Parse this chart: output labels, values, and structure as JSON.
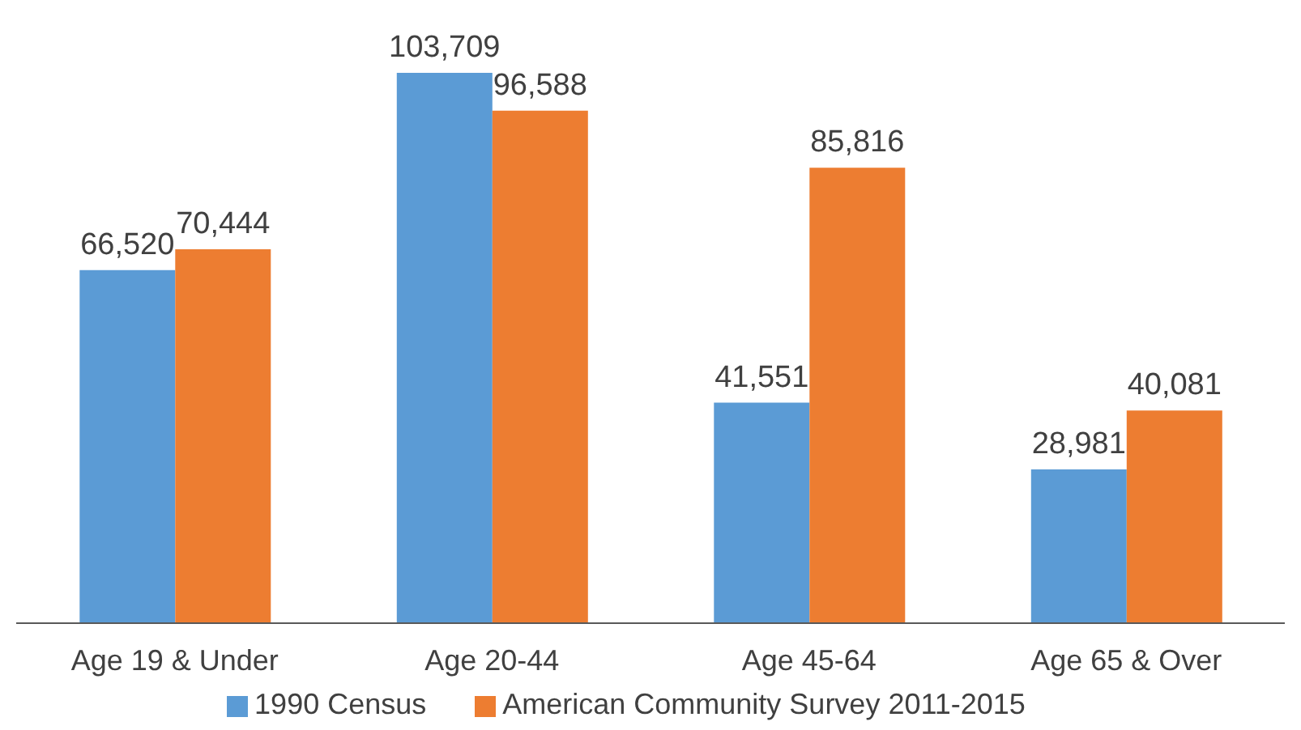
{
  "chart_data": {
    "type": "bar",
    "categories": [
      "Age 19 & Under",
      "Age 20-44",
      "Age 45-64",
      "Age 65 & Over"
    ],
    "series": [
      {
        "name": "1990 Census",
        "color": "#5b9bd5",
        "values": [
          66520,
          103709,
          41551,
          28981
        ],
        "value_labels": [
          "66,520",
          "103,709",
          "41,551",
          "28,981"
        ]
      },
      {
        "name": "American Community Survey 2011-2015",
        "color": "#ed7d31",
        "values": [
          70444,
          96588,
          85816,
          40081
        ],
        "value_labels": [
          "70,444",
          "96,588",
          "85,816",
          "40,081"
        ]
      }
    ],
    "legend": "bottom"
  }
}
